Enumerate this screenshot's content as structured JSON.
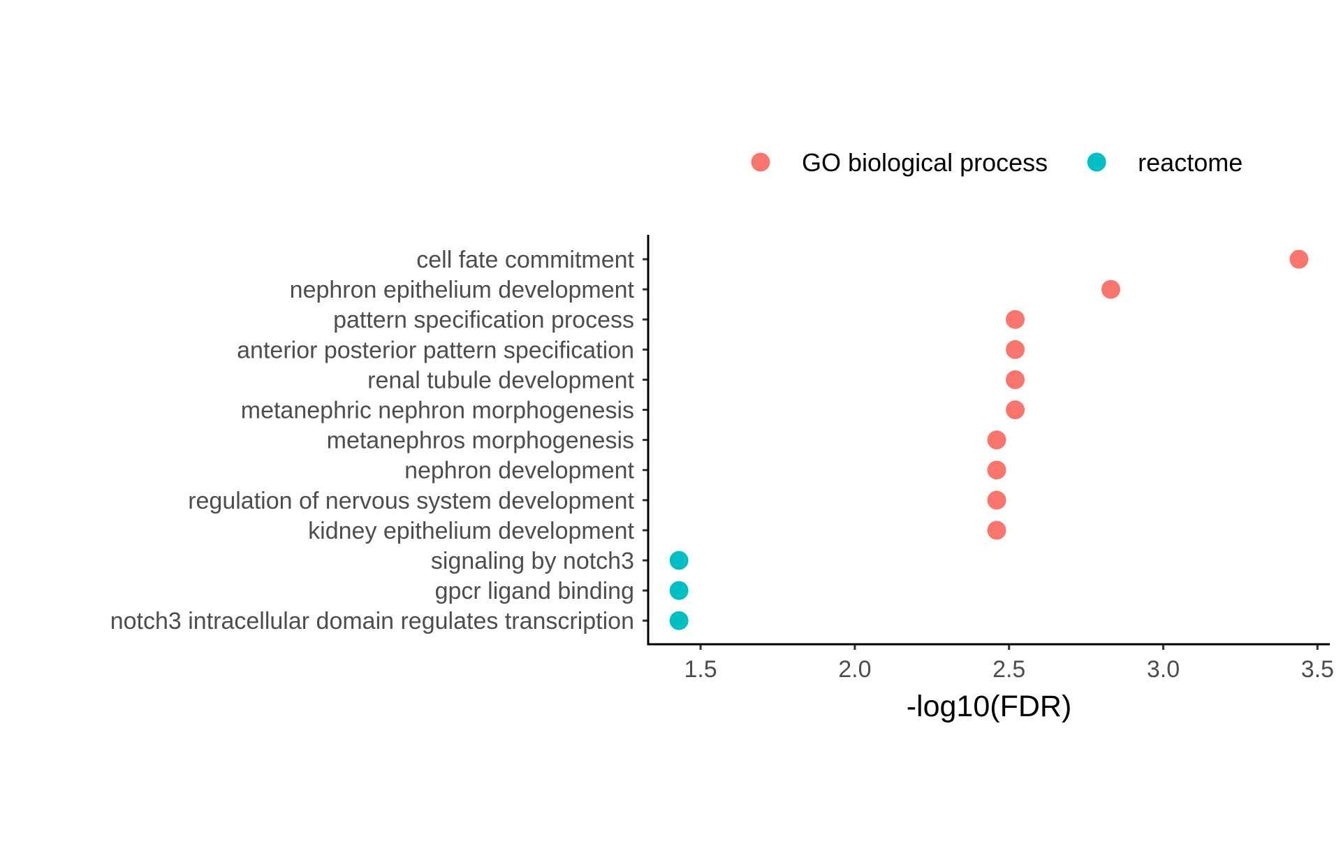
{
  "chart_data": {
    "type": "scatter",
    "title": "",
    "xlabel": "-log10(FDR)",
    "ylabel": "",
    "xlim": [
      1.33,
      3.54
    ],
    "x_ticks": [
      {
        "value": 1.5,
        "label": "1.5"
      },
      {
        "value": 2.0,
        "label": "2.0"
      },
      {
        "value": 2.5,
        "label": "2.5"
      },
      {
        "value": 3.0,
        "label": "3.0"
      },
      {
        "value": 3.5,
        "label": "3.5"
      }
    ],
    "categories": [
      "cell fate commitment",
      "nephron epithelium development",
      "pattern specification process",
      "anterior posterior pattern specification",
      "renal tubule development",
      "metanephric nephron morphogenesis",
      "metanephros morphogenesis",
      "nephron development",
      "regulation of nervous system development",
      "kidney epithelium development",
      "signaling by notch3",
      "gpcr ligand binding",
      "notch3 intracellular domain regulates transcription"
    ],
    "legend_position": "top",
    "grid": false,
    "series": [
      {
        "name": "GO biological process",
        "color": "#F8766D",
        "points": [
          {
            "category": "cell fate commitment",
            "x": 3.44
          },
          {
            "category": "nephron epithelium development",
            "x": 2.83
          },
          {
            "category": "pattern specification process",
            "x": 2.52
          },
          {
            "category": "anterior posterior pattern specification",
            "x": 2.52
          },
          {
            "category": "renal tubule development",
            "x": 2.52
          },
          {
            "category": "metanephric nephron morphogenesis",
            "x": 2.52
          },
          {
            "category": "metanephros morphogenesis",
            "x": 2.46
          },
          {
            "category": "nephron development",
            "x": 2.46
          },
          {
            "category": "regulation of nervous system development",
            "x": 2.46
          },
          {
            "category": "kidney epithelium development",
            "x": 2.46
          }
        ]
      },
      {
        "name": "reactome",
        "color": "#00BFC4",
        "points": [
          {
            "category": "signaling by notch3",
            "x": 1.43
          },
          {
            "category": "gpcr ligand binding",
            "x": 1.43
          },
          {
            "category": "notch3 intracellular domain regulates transcription",
            "x": 1.43
          }
        ]
      }
    ]
  }
}
